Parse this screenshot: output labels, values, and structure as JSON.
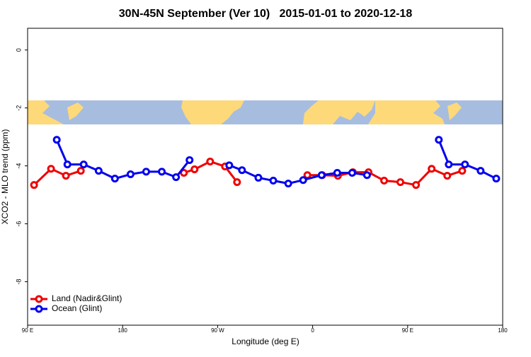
{
  "chart_data": {
    "type": "line",
    "title": "30N-45N September (Ver 10)   2015-01-01 to 2020-12-18",
    "xlabel": "Longitude (deg E)",
    "ylabel": "XCO2 - MLO trend (ppm)",
    "xlim": [
      90,
      540
    ],
    "xticks": [
      {
        "value": 90,
        "label": "90 E"
      },
      {
        "value": 180,
        "label": "180"
      },
      {
        "value": 270,
        "label": "90 W"
      },
      {
        "value": 360,
        "label": "0"
      },
      {
        "value": 450,
        "label": "90 E"
      },
      {
        "value": 540,
        "label": "180"
      }
    ],
    "ylim": [
      -9.5,
      0.75
    ],
    "yticks": [
      0,
      -2,
      -4,
      -6,
      -8
    ],
    "legend": "lower left",
    "series": [
      {
        "name": "Land (Nadir&Glint)",
        "color": "#ee0000",
        "x": [
          96.1,
          112.2,
          126.3,
          140.4,
          null,
          238.0,
          248.1,
          262.9,
          277.0,
          288.4,
          null,
          355.0,
          369.1,
          383.9,
          398.1,
          412.9,
          427.7,
          443.1,
          457.9,
          472.7,
          487.5,
          501.7
        ],
        "values": [
          -4.66,
          -4.1,
          -4.34,
          -4.17,
          null,
          -4.24,
          -4.12,
          -3.85,
          -4.02,
          -4.56,
          null,
          -4.32,
          -4.32,
          -4.34,
          -4.22,
          -4.22,
          -4.51,
          -4.56,
          -4.66,
          -4.1,
          -4.34,
          -4.17
        ]
      },
      {
        "name": "Ocean (Glint)",
        "color": "#0000ee",
        "x": [
          117.6,
          127.7,
          143.1,
          157.3,
          172.7,
          187.5,
          202.3,
          217.1,
          230.6,
          243.4,
          null,
          281.0,
          293.1,
          308.6,
          322.7,
          336.9,
          351.0,
          368.5,
          383.3,
          397.4,
          411.5,
          null,
          479.5,
          488.9,
          504.3,
          519.1,
          533.9
        ],
        "values": [
          -3.1,
          -3.95,
          -3.95,
          -4.17,
          -4.44,
          -4.29,
          -4.2,
          -4.2,
          -4.39,
          -3.8,
          null,
          -3.98,
          -4.15,
          -4.41,
          -4.51,
          -4.61,
          -4.49,
          -4.32,
          -4.24,
          -4.24,
          -4.32,
          null,
          -3.1,
          -3.95,
          -3.95,
          -4.17,
          -4.44
        ]
      }
    ]
  }
}
